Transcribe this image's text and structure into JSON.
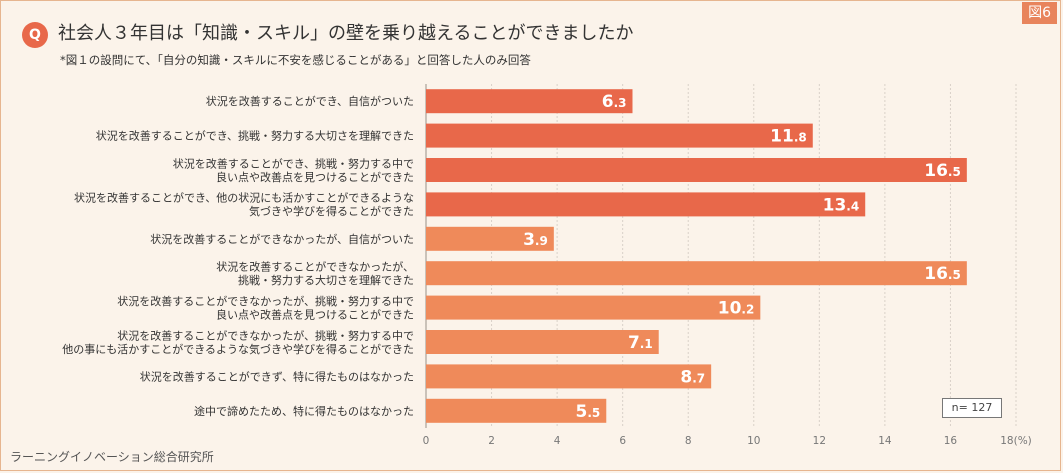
{
  "figure_tag": "図6",
  "question_badge": "Q",
  "title": "社会人３年目は「知識・スキル」の壁を乗り越えることができましたか",
  "subtitle": "*図１の設問にて、「自分の知識・スキルに不安を感じることがある」と回答した人のみ回答",
  "source": "ラーニングイノベーション総合研究所",
  "sample_size": "n= 127",
  "colors": {
    "group_a": "#e8684a",
    "group_b": "#ef8a5a",
    "background": "#fbf3ea",
    "grid": "#d9d0c8"
  },
  "chart_data": {
    "type": "bar",
    "orientation": "horizontal",
    "categories": [
      [
        "状況を改善することができ、自信がついた"
      ],
      [
        "状況を改善することができ、挑戦・努力する大切さを理解できた"
      ],
      [
        "状況を改善することができ、挑戦・努力する中で",
        "良い点や改善点を見つけることができた"
      ],
      [
        "状況を改善することができ、他の状況にも活かすことができるような",
        "気づきや学びを得ることができた"
      ],
      [
        "状況を改善することができなかったが、自信がついた"
      ],
      [
        "状況を改善することができなかったが、",
        "挑戦・努力する大切さを理解できた"
      ],
      [
        "状況を改善することができなかったが、挑戦・努力する中で",
        "良い点や改善点を見つけることができた"
      ],
      [
        "状況を改善することができなかったが、挑戦・努力する中で",
        "他の事にも活かすことができるような気づきや学びを得ることができた"
      ],
      [
        "状況を改善することができず、特に得たものはなかった"
      ],
      [
        "途中で諦めたため、特に得たものはなかった"
      ]
    ],
    "values": [
      6.3,
      11.8,
      16.5,
      13.4,
      3.9,
      16.5,
      10.2,
      7.1,
      8.7,
      5.5
    ],
    "value_labels": [
      [
        "6",
        ".3"
      ],
      [
        "11",
        ".8"
      ],
      [
        "16",
        ".5"
      ],
      [
        "13",
        ".4"
      ],
      [
        "3",
        ".9"
      ],
      [
        "16",
        ".5"
      ],
      [
        "10",
        ".2"
      ],
      [
        "7",
        ".1"
      ],
      [
        "8",
        ".7"
      ],
      [
        "5",
        ".5"
      ]
    ],
    "group": [
      "a",
      "a",
      "a",
      "a",
      "b",
      "b",
      "b",
      "b",
      "b",
      "b"
    ],
    "xlim": [
      0,
      18
    ],
    "xticks": [
      "0",
      "2",
      "4",
      "6",
      "8",
      "10",
      "12",
      "14",
      "16",
      "18(%)"
    ],
    "grid": true
  }
}
